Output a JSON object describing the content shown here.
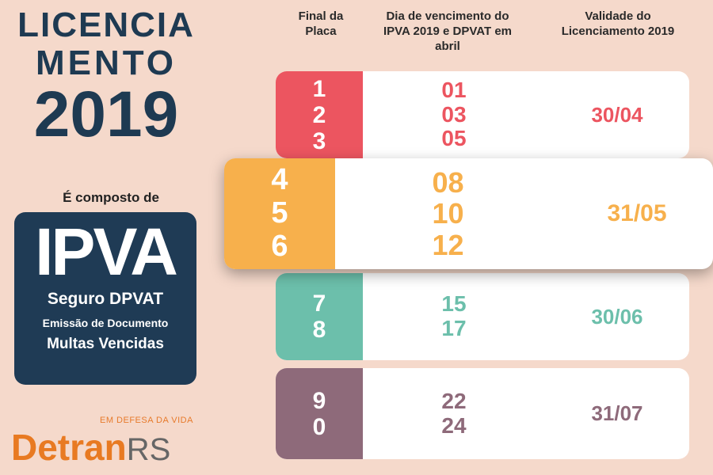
{
  "title": {
    "line1": "LICENCIA",
    "line2": "MENTO",
    "line3": "2019"
  },
  "composto_label": "É composto de",
  "components": {
    "main": "IPVA",
    "items": [
      "Seguro DPVAT",
      "Emissão de Documento",
      "Multas Vencidas"
    ]
  },
  "logo": {
    "slogan": "EM DEFESA DA VIDA",
    "name_a": "Detran",
    "name_b": "RS"
  },
  "headers": [
    "Final da Placa",
    "Dia de vencimento do IPVA 2019 e DPVAT em abril",
    "Validade do Licenciamento 2019"
  ],
  "rows": [
    {
      "plates": [
        "1",
        "2",
        "3"
      ],
      "days": [
        "01",
        "03",
        "05"
      ],
      "validity": "30/04",
      "color": "#ec5560"
    },
    {
      "plates": [
        "4",
        "5",
        "6"
      ],
      "days": [
        "08",
        "10",
        "12"
      ],
      "validity": "31/05",
      "color": "#f7b04c"
    },
    {
      "plates": [
        "7",
        "8"
      ],
      "days": [
        "15",
        "17"
      ],
      "validity": "30/06",
      "color": "#6cbfab"
    },
    {
      "plates": [
        "9",
        "0"
      ],
      "days": [
        "22",
        "24"
      ],
      "validity": "31/07",
      "color": "#8e6a7a"
    }
  ]
}
